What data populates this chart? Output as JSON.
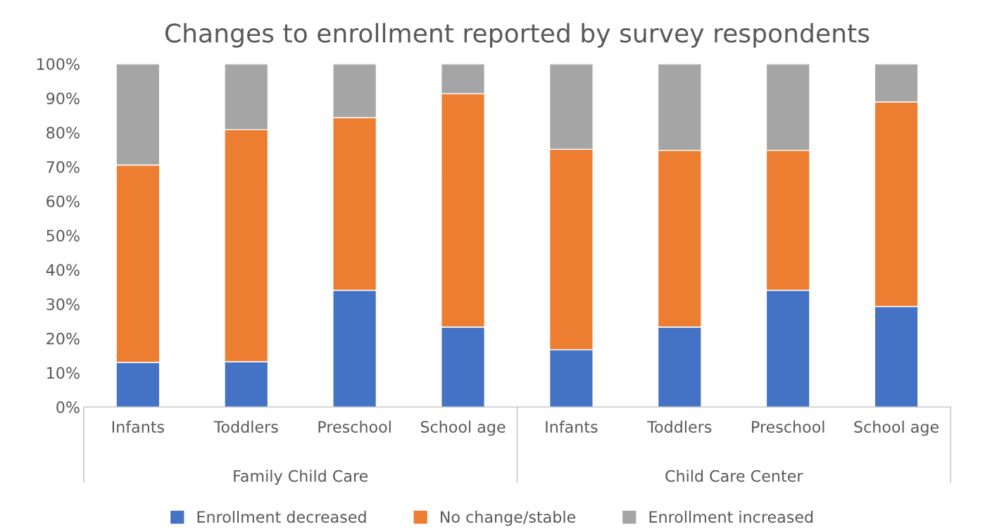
{
  "chart_data": {
    "type": "bar",
    "stacked": true,
    "title": "Changes to enrollment reported by survey respondents",
    "categories": [
      "Infants",
      "Toddlers",
      "Preschool",
      "School age",
      "Infants",
      "Toddlers",
      "Preschool",
      "School age"
    ],
    "series": [
      {
        "name": "Enrollment decreased",
        "color": "#4472c4",
        "values": [
          13.0,
          13.2,
          34.0,
          23.3,
          16.7,
          23.3,
          34.0,
          29.3
        ]
      },
      {
        "name": "No change/stable",
        "color": "#ed7d31",
        "values": [
          57.5,
          67.6,
          50.3,
          68.0,
          58.4,
          51.5,
          40.8,
          59.6
        ]
      },
      {
        "name": "Enrollment increased",
        "color": "#a5a5a5",
        "values": [
          29.5,
          19.2,
          15.7,
          8.7,
          24.9,
          25.2,
          25.2,
          11.1
        ]
      }
    ],
    "ylim": [
      0,
      100
    ],
    "yticks": [
      {
        "value": 0,
        "label": "0%"
      },
      {
        "value": 10,
        "label": "10%"
      },
      {
        "value": 20,
        "label": "20%"
      },
      {
        "value": 30,
        "label": "30%"
      },
      {
        "value": 40,
        "label": "40%"
      },
      {
        "value": 50,
        "label": "50%"
      },
      {
        "value": 60,
        "label": "60%"
      },
      {
        "value": 70,
        "label": "70%"
      },
      {
        "value": 80,
        "label": "80%"
      },
      {
        "value": 90,
        "label": "90%"
      },
      {
        "value": 100,
        "label": "100%"
      }
    ],
    "annotations": [
      "Family Child Care",
      "Child Care Center"
    ],
    "grid": false,
    "legend": "bottom"
  }
}
